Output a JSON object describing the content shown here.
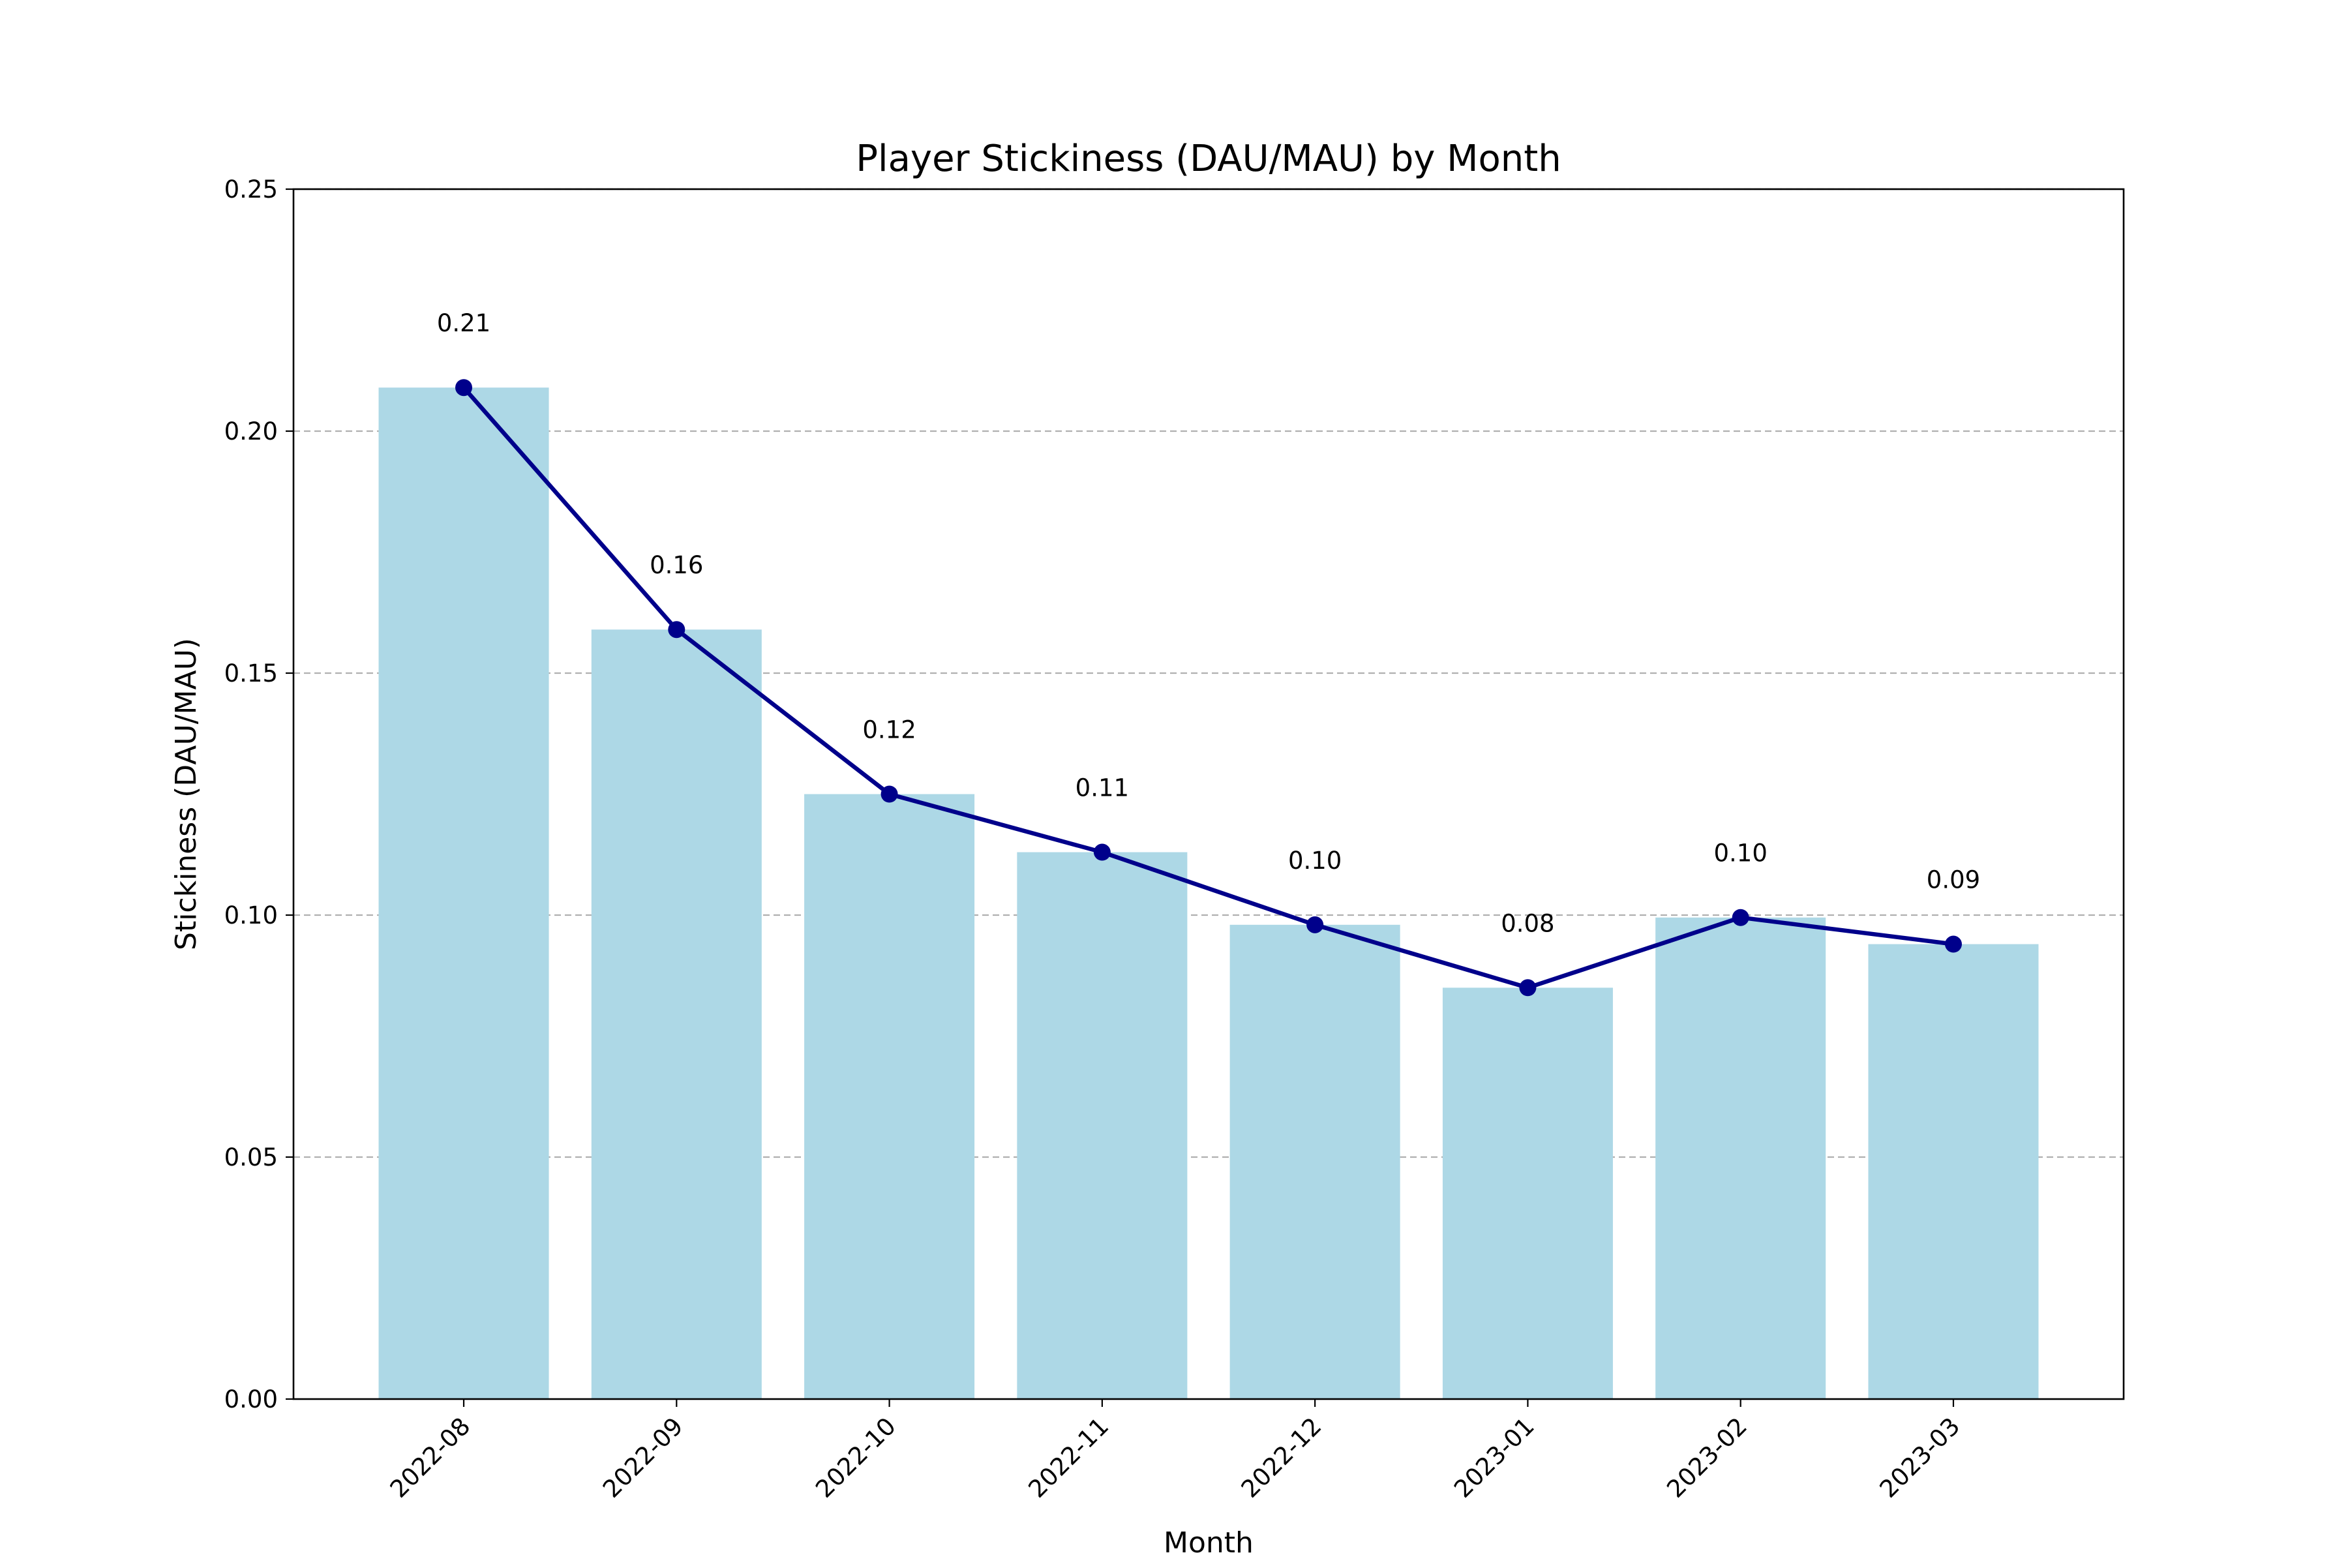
{
  "chart_data": {
    "type": "bar",
    "title": "Player Stickiness (DAU/MAU) by Month",
    "xlabel": "Month",
    "ylabel": "Stickiness (DAU/MAU)",
    "categories": [
      "2022-08",
      "2022-09",
      "2022-10",
      "2022-11",
      "2022-12",
      "2023-01",
      "2023-02",
      "2023-03"
    ],
    "series": [
      {
        "type": "bar",
        "values": [
          0.209,
          0.159,
          0.125,
          0.113,
          0.098,
          0.085,
          0.0995,
          0.094
        ],
        "color": "#add8e6"
      },
      {
        "type": "line",
        "values": [
          0.209,
          0.159,
          0.125,
          0.113,
          0.098,
          0.085,
          0.0995,
          0.094
        ],
        "color": "#00008b",
        "marker": "circle"
      }
    ],
    "data_labels": [
      "0.21",
      "0.16",
      "0.12",
      "0.11",
      "0.10",
      "0.08",
      "0.10",
      "0.09"
    ],
    "ylim": [
      0,
      0.25
    ],
    "yticks": [
      0.0,
      0.05,
      0.1,
      0.15,
      0.2,
      0.25
    ],
    "ytick_labels": [
      "0.00",
      "0.05",
      "0.10",
      "0.15",
      "0.20",
      "0.25"
    ],
    "grid": "y-dashed",
    "legend": "none"
  }
}
